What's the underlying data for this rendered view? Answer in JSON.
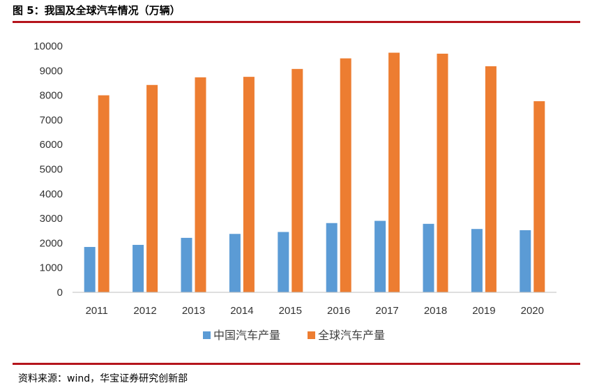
{
  "figure": {
    "title": "图 5：我国及全球汽车情况（万辆）",
    "source": "资料来源：wind，华宝证券研究创新部"
  },
  "colors": {
    "china": "#5b9bd5",
    "global": "#ed7d31",
    "rule": "#b5141c",
    "axis": "#bfbfbf"
  },
  "chart_data": {
    "type": "bar",
    "categories": [
      "2011",
      "2012",
      "2013",
      "2014",
      "2015",
      "2016",
      "2017",
      "2018",
      "2019",
      "2020"
    ],
    "series": [
      {
        "name": "中国汽车产量",
        "values": [
          1842,
          1927,
          2212,
          2372,
          2450,
          2812,
          2902,
          2781,
          2572,
          2523
        ]
      },
      {
        "name": "全球汽车产量",
        "values": [
          8000,
          8420,
          8730,
          8750,
          9070,
          9500,
          9730,
          9690,
          9180,
          7760
        ]
      }
    ],
    "ylim": [
      0,
      10000
    ],
    "yticks": [
      0,
      1000,
      2000,
      3000,
      4000,
      5000,
      6000,
      7000,
      8000,
      9000,
      10000
    ],
    "grid": false,
    "legend": "bottom"
  }
}
